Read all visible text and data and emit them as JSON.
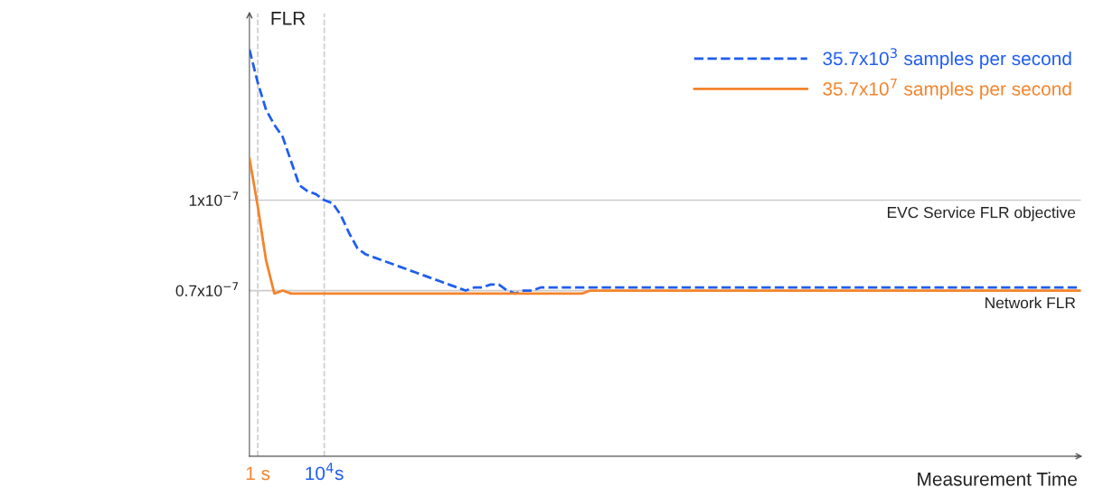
{
  "chart_data": {
    "type": "line",
    "ylabel": "FLR",
    "xlabel": "Measurement Time",
    "categories": [
      null,
      "1 s",
      null,
      null,
      null,
      null,
      null,
      null,
      null,
      "10$^{4}$s",
      null,
      null,
      null,
      null,
      null,
      null,
      null,
      null,
      null,
      null,
      null,
      null,
      null,
      null,
      null,
      null,
      null,
      null,
      null,
      null,
      null,
      null,
      null,
      null,
      null,
      null,
      null,
      null,
      null,
      null,
      null,
      null,
      null,
      null,
      null,
      null,
      null,
      null,
      null,
      null,
      null,
      null,
      null,
      null,
      null,
      null,
      null,
      null,
      null,
      null,
      null,
      null,
      null,
      null,
      null,
      null,
      null,
      null,
      null,
      null,
      null,
      null,
      null,
      null,
      null,
      null,
      null,
      null,
      null,
      null,
      null,
      null,
      null,
      null,
      null,
      null,
      null,
      null,
      null,
      null,
      null,
      null,
      null,
      null,
      null,
      null,
      null,
      null,
      null,
      null,
      null
    ],
    "ylim": [
      1.5e-08,
      1.62e-07
    ],
    "yticks": [
      {
        "value": 7e-08,
        "label": "0.7x10$^{−7}$"
      },
      {
        "value": 1e-07,
        "label": "1x10$^{−7}$"
      }
    ],
    "series": [
      {
        "name": "35.7x10$^{3}$ samples per second",
        "color": "#1f5ef0",
        "line_style": "dashed",
        "values": [
          1.5e-07,
          1.39e-07,
          1.3e-07,
          1.25e-07,
          1.21e-07,
          1.13e-07,
          1.05e-07,
          1.03e-07,
          1.02e-07,
          1e-07,
          9.9e-08,
          9.5e-08,
          8.9e-08,
          8.4e-08,
          8.2e-08,
          8.1e-08,
          8e-08,
          7.9e-08,
          7.8e-08,
          7.7e-08,
          7.6e-08,
          7.5e-08,
          7.4e-08,
          7.3e-08,
          7.2e-08,
          7.1e-08,
          7e-08,
          7.1e-08,
          7.1e-08,
          7.2e-08,
          7.2e-08,
          7e-08,
          6.9e-08,
          7e-08,
          7e-08,
          7.1e-08,
          7.1e-08,
          7.1e-08,
          7.1e-08,
          7.1e-08,
          7.1e-08,
          7.1e-08,
          7.1e-08,
          7.1e-08,
          7.1e-08,
          7.1e-08,
          7.1e-08,
          7.1e-08,
          7.1e-08,
          7.1e-08,
          7.1e-08,
          7.1e-08,
          7.1e-08,
          7.1e-08,
          7.1e-08,
          7.1e-08,
          7.1e-08,
          7.1e-08,
          7.1e-08,
          7.1e-08,
          7.1e-08,
          7.1e-08,
          7.1e-08,
          7.1e-08,
          7.1e-08,
          7.1e-08,
          7.1e-08,
          7.1e-08,
          7.1e-08,
          7.1e-08,
          7.1e-08,
          7.1e-08,
          7.1e-08,
          7.1e-08,
          7.1e-08,
          7.1e-08,
          7.1e-08,
          7.1e-08,
          7.1e-08,
          7.1e-08,
          7.1e-08,
          7.1e-08,
          7.1e-08,
          7.1e-08,
          7.1e-08,
          7.1e-08,
          7.1e-08,
          7.1e-08,
          7.1e-08,
          7.1e-08,
          7.1e-08,
          7.1e-08,
          7.1e-08,
          7.1e-08,
          7.1e-08,
          7.1e-08,
          7.1e-08,
          7.1e-08,
          7.1e-08,
          7.1e-08,
          7.1e-08
        ]
      },
      {
        "name": "35.7x10$^{7}$ samples per second",
        "color": "#f4842c",
        "line_style": "solid",
        "values": [
          1.14e-07,
          9.8e-08,
          8e-08,
          6.9e-08,
          7e-08,
          6.9e-08,
          6.9e-08,
          6.9e-08,
          6.9e-08,
          6.9e-08,
          6.9e-08,
          6.9e-08,
          6.9e-08,
          6.9e-08,
          6.9e-08,
          6.9e-08,
          6.9e-08,
          6.9e-08,
          6.9e-08,
          6.9e-08,
          6.9e-08,
          6.9e-08,
          6.9e-08,
          6.9e-08,
          6.9e-08,
          6.9e-08,
          6.9e-08,
          6.9e-08,
          6.9e-08,
          6.9e-08,
          6.9e-08,
          6.9e-08,
          6.9e-08,
          6.9e-08,
          6.9e-08,
          6.9e-08,
          6.9e-08,
          6.9e-08,
          6.9e-08,
          6.9e-08,
          6.9e-08,
          7e-08,
          7e-08,
          7e-08,
          7e-08,
          7e-08,
          7e-08,
          7e-08,
          7e-08,
          7e-08,
          7e-08,
          7e-08,
          7e-08,
          7e-08,
          7e-08,
          7e-08,
          7e-08,
          7e-08,
          7e-08,
          7e-08,
          7e-08,
          7e-08,
          7e-08,
          7e-08,
          7e-08,
          7e-08,
          7e-08,
          7e-08,
          7e-08,
          7e-08,
          7e-08,
          7e-08,
          7e-08,
          7e-08,
          7e-08,
          7e-08,
          7e-08,
          7e-08,
          7e-08,
          7e-08,
          7e-08,
          7e-08,
          7e-08,
          7e-08,
          7e-08,
          7e-08,
          7e-08,
          7e-08,
          7e-08,
          7e-08,
          7e-08,
          7e-08,
          7e-08,
          7e-08,
          7e-08,
          7e-08,
          7e-08,
          7e-08,
          7e-08,
          7e-08,
          7e-08
        ]
      }
    ],
    "ref_lines": [
      {
        "axis": "y",
        "value": 1e-07,
        "label": "EVC Service FLR objective",
        "color": "#cccccc",
        "line_style": "solid"
      },
      {
        "axis": "y",
        "value": 7e-08,
        "label": "Network FLR",
        "color": "#cccccc",
        "line_style": "solid"
      }
    ],
    "legend": "top right",
    "grid": "x",
    "marker": "none"
  }
}
